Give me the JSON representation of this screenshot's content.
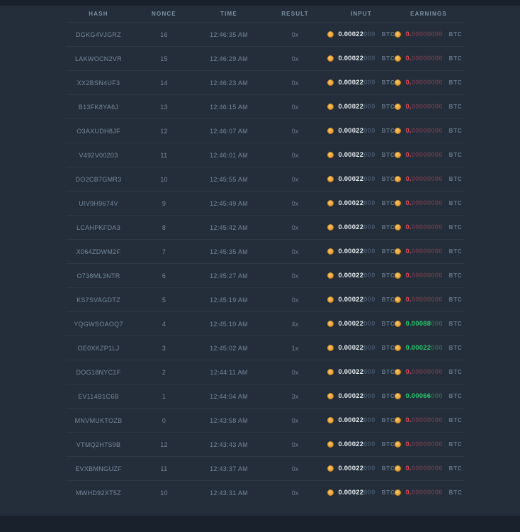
{
  "colors": {
    "background": "#232e3a",
    "strip": "#19222c",
    "separator": "#2b3844",
    "coin_orange": "#e79b2e",
    "amount_bright": "#e8eef3",
    "amount_dim": "#46566a",
    "earnings_negative": "#d94c5c",
    "earnings_positive": "#2bc46e",
    "header_text": "#7e92a3",
    "row_text": "#76879a"
  },
  "table": {
    "currency": "BTC",
    "headers": [
      {
        "key": "hash",
        "label": "HASH"
      },
      {
        "key": "nonce",
        "label": "NONCE"
      },
      {
        "key": "time",
        "label": "TIME"
      },
      {
        "key": "result",
        "label": "RESULT"
      },
      {
        "key": "input",
        "label": "INPUT"
      },
      {
        "key": "earnings",
        "label": "EARNINGS"
      }
    ],
    "rows": [
      {
        "hash": "DGKG4VJGRZ",
        "nonce": "16",
        "time": "12:46:35 AM",
        "result": "0x",
        "input": {
          "sig": "0.00022",
          "rest": "000"
        },
        "earnings": {
          "sig": "0.",
          "rest": "00000000",
          "state": "zero"
        }
      },
      {
        "hash": "LAKWOCN2VR",
        "nonce": "15",
        "time": "12:46:29 AM",
        "result": "0x",
        "input": {
          "sig": "0.00022",
          "rest": "000"
        },
        "earnings": {
          "sig": "0.",
          "rest": "00000000",
          "state": "zero"
        }
      },
      {
        "hash": "XX2BSN4UF3",
        "nonce": "14",
        "time": "12:46:23 AM",
        "result": "0x",
        "input": {
          "sig": "0.00022",
          "rest": "000"
        },
        "earnings": {
          "sig": "0.",
          "rest": "00000000",
          "state": "zero"
        }
      },
      {
        "hash": "B13FK8YA6J",
        "nonce": "13",
        "time": "12:46:15 AM",
        "result": "0x",
        "input": {
          "sig": "0.00022",
          "rest": "000"
        },
        "earnings": {
          "sig": "0.",
          "rest": "00000000",
          "state": "zero"
        }
      },
      {
        "hash": "O3AXUDH8JF",
        "nonce": "12",
        "time": "12:46:07 AM",
        "result": "0x",
        "input": {
          "sig": "0.00022",
          "rest": "000"
        },
        "earnings": {
          "sig": "0.",
          "rest": "00000000",
          "state": "zero"
        }
      },
      {
        "hash": "V492V00203",
        "nonce": "11",
        "time": "12:46:01 AM",
        "result": "0x",
        "input": {
          "sig": "0.00022",
          "rest": "000"
        },
        "earnings": {
          "sig": "0.",
          "rest": "00000000",
          "state": "zero"
        }
      },
      {
        "hash": "DO2CB7GMR3",
        "nonce": "10",
        "time": "12:45:55 AM",
        "result": "0x",
        "input": {
          "sig": "0.00022",
          "rest": "000"
        },
        "earnings": {
          "sig": "0.",
          "rest": "00000000",
          "state": "zero"
        }
      },
      {
        "hash": "UIV9H9674V",
        "nonce": "9",
        "time": "12:45:49 AM",
        "result": "0x",
        "input": {
          "sig": "0.00022",
          "rest": "000"
        },
        "earnings": {
          "sig": "0.",
          "rest": "00000000",
          "state": "zero"
        }
      },
      {
        "hash": "LCAHPKFDA3",
        "nonce": "8",
        "time": "12:45:42 AM",
        "result": "0x",
        "input": {
          "sig": "0.00022",
          "rest": "000"
        },
        "earnings": {
          "sig": "0.",
          "rest": "00000000",
          "state": "zero"
        }
      },
      {
        "hash": "X064ZDWM2F",
        "nonce": "7",
        "time": "12:45:35 AM",
        "result": "0x",
        "input": {
          "sig": "0.00022",
          "rest": "000"
        },
        "earnings": {
          "sig": "0.",
          "rest": "00000000",
          "state": "zero"
        }
      },
      {
        "hash": "O738ML3NTR",
        "nonce": "6",
        "time": "12:45:27 AM",
        "result": "0x",
        "input": {
          "sig": "0.00022",
          "rest": "000"
        },
        "earnings": {
          "sig": "0.",
          "rest": "00000000",
          "state": "zero"
        }
      },
      {
        "hash": "KS7SVAGDTZ",
        "nonce": "5",
        "time": "12:45:19 AM",
        "result": "0x",
        "input": {
          "sig": "0.00022",
          "rest": "000"
        },
        "earnings": {
          "sig": "0.",
          "rest": "00000000",
          "state": "zero"
        }
      },
      {
        "hash": "YQGWSOAOQ7",
        "nonce": "4",
        "time": "12:45:10 AM",
        "result": "4x",
        "input": {
          "sig": "0.00022",
          "rest": "000"
        },
        "earnings": {
          "sig": "0.00088",
          "rest": "000",
          "state": "win"
        }
      },
      {
        "hash": "OE0XKZP1LJ",
        "nonce": "3",
        "time": "12:45:02 AM",
        "result": "1x",
        "input": {
          "sig": "0.00022",
          "rest": "000"
        },
        "earnings": {
          "sig": "0.00022",
          "rest": "000",
          "state": "win"
        }
      },
      {
        "hash": "DOG18NYC1F",
        "nonce": "2",
        "time": "12:44:11 AM",
        "result": "0x",
        "input": {
          "sig": "0.00022",
          "rest": "000"
        },
        "earnings": {
          "sig": "0.",
          "rest": "00000000",
          "state": "zero"
        }
      },
      {
        "hash": "EV114B1C6B",
        "nonce": "1",
        "time": "12:44:04 AM",
        "result": "3x",
        "input": {
          "sig": "0.00022",
          "rest": "000"
        },
        "earnings": {
          "sig": "0.00066",
          "rest": "000",
          "state": "win"
        }
      },
      {
        "hash": "MNVMUKTOZB",
        "nonce": "0",
        "time": "12:43:58 AM",
        "result": "0x",
        "input": {
          "sig": "0.00022",
          "rest": "000"
        },
        "earnings": {
          "sig": "0.",
          "rest": "00000000",
          "state": "zero"
        }
      },
      {
        "hash": "VTMQ2H7S9B",
        "nonce": "12",
        "time": "12:43:43 AM",
        "result": "0x",
        "input": {
          "sig": "0.00022",
          "rest": "000"
        },
        "earnings": {
          "sig": "0.",
          "rest": "00000000",
          "state": "zero"
        }
      },
      {
        "hash": "EVXBMNGUZF",
        "nonce": "11",
        "time": "12:43:37 AM",
        "result": "0x",
        "input": {
          "sig": "0.00022",
          "rest": "000"
        },
        "earnings": {
          "sig": "0.",
          "rest": "00000000",
          "state": "zero"
        }
      },
      {
        "hash": "MWHD92XT5Z",
        "nonce": "10",
        "time": "12:43:31 AM",
        "result": "0x",
        "input": {
          "sig": "0.00022",
          "rest": "000"
        },
        "earnings": {
          "sig": "0.",
          "rest": "00000000",
          "state": "zero"
        }
      }
    ]
  }
}
